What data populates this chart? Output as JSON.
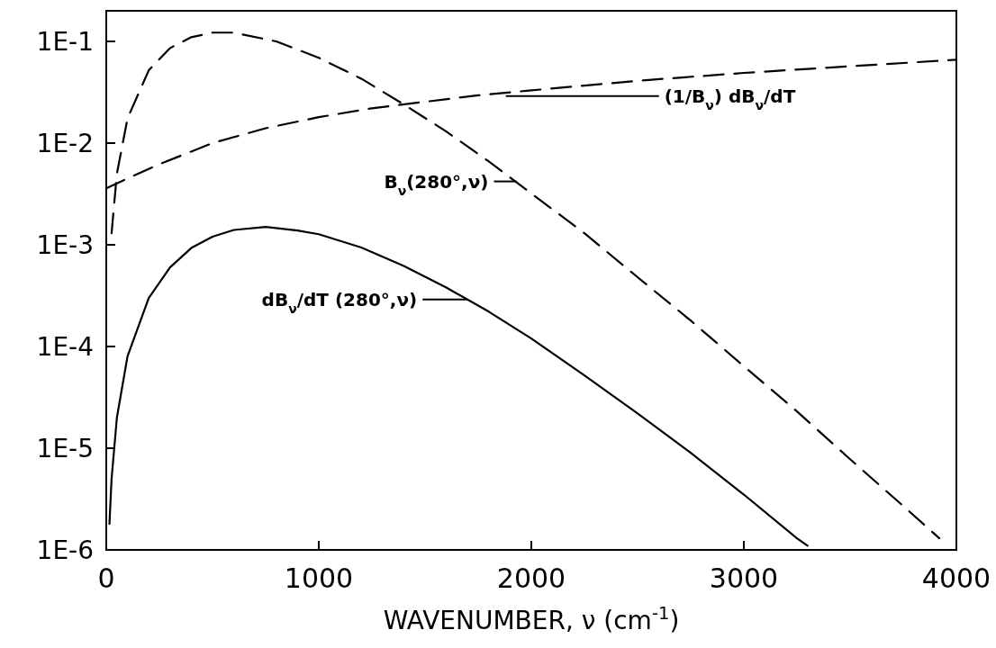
{
  "chart_data": {
    "type": "line",
    "xlabel": "WAVENUMBER, ν (cm$^{-1}$)",
    "log": "y",
    "xlim": [
      0,
      4000
    ],
    "xticks": [
      0,
      1000,
      2000,
      3000,
      4000
    ],
    "ylim": [
      1e-06,
      0.2
    ],
    "yticks": [
      {
        "value": 1e-06,
        "label": "1E-6"
      },
      {
        "value": 1e-05,
        "label": "1E-5"
      },
      {
        "value": 0.0001,
        "label": "1E-4"
      },
      {
        "value": 0.001,
        "label": "1E-3"
      },
      {
        "value": 0.01,
        "label": "1E-2"
      },
      {
        "value": 0.1,
        "label": "1E-1"
      }
    ],
    "series": [
      {
        "color": "#000000",
        "line_style": "dashed",
        "x": [
          25,
          50,
          100,
          200,
          300,
          400,
          500,
          600,
          800,
          1000,
          1200,
          1400,
          1600,
          1800,
          2000,
          2250,
          2500,
          2750,
          3000,
          3250,
          3500,
          3750,
          3920
        ],
        "values": [
          0.0013,
          0.005,
          0.0175,
          0.052,
          0.086,
          0.11,
          0.122,
          0.122,
          0.1,
          0.069,
          0.043,
          0.024,
          0.013,
          0.0066,
          0.0032,
          0.0013,
          0.00048,
          0.00018,
          6.4e-05,
          2.3e-05,
          7.8e-06,
          2.7e-06,
          1.3e-06
        ]
      },
      {
        "color": "#000000",
        "line_style": "solid",
        "x": [
          15,
          25,
          50,
          100,
          200,
          300,
          400,
          500,
          600,
          750,
          900,
          1000,
          1200,
          1400,
          1600,
          1800,
          2000,
          2250,
          2500,
          2750,
          3000,
          3250,
          3300
        ],
        "values": [
          1.8e-06,
          5e-06,
          2e-05,
          8e-05,
          0.0003,
          0.0006,
          0.00093,
          0.0012,
          0.0014,
          0.0015,
          0.00138,
          0.00127,
          0.00094,
          0.00062,
          0.00038,
          0.00022,
          0.00012,
          5.2e-05,
          2.2e-05,
          9e-06,
          3.5e-06,
          1.3e-06,
          1.1e-06
        ]
      },
      {
        "color": "#000000",
        "line_style": "dashed",
        "x": [
          0,
          100,
          250,
          500,
          750,
          1000,
          1250,
          1500,
          1750,
          2000,
          2500,
          3000,
          3500,
          4000
        ],
        "values": [
          0.0036,
          0.0045,
          0.0062,
          0.01,
          0.014,
          0.018,
          0.022,
          0.0255,
          0.0295,
          0.033,
          0.041,
          0.049,
          0.057,
          0.066
        ]
      }
    ],
    "annotations": [
      {
        "text": "B$_{ν}$(280°,ν)",
        "x": 1930,
        "y": 0.0042
      },
      {
        "text": "dB$_{ν}$/dT (280°,ν)",
        "x": 1700,
        "y": 0.00029
      },
      {
        "text": "(1/B$_{ν}$) dB$_{ν}$/dT",
        "x": 1880,
        "y": 0.029
      }
    ]
  }
}
